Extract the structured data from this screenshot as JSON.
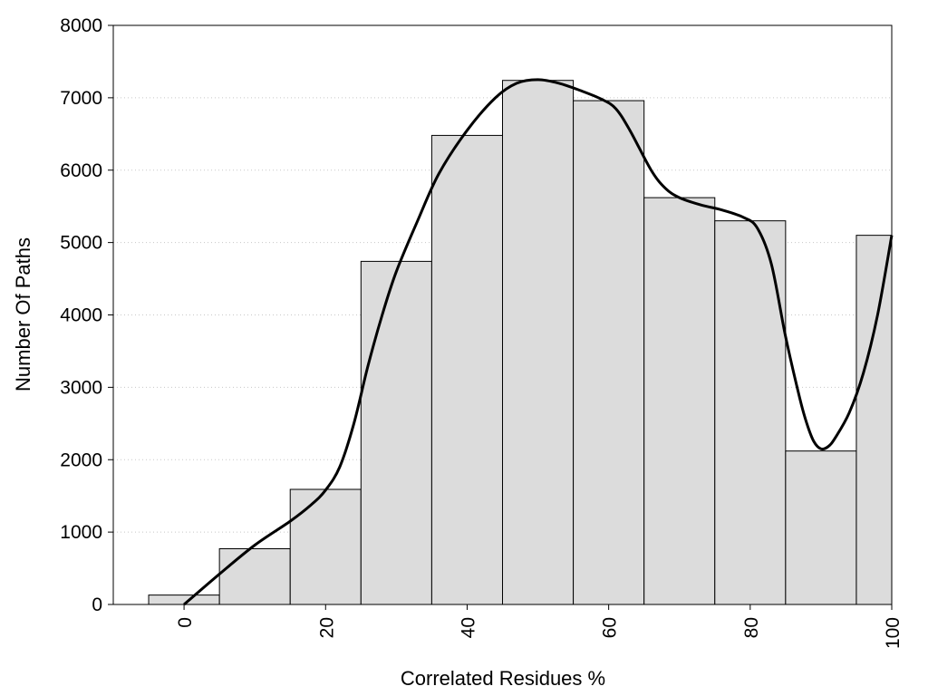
{
  "chart_data": {
    "type": "bar",
    "xlabel": "Correlated Residues %",
    "ylabel": "Number Of Paths",
    "xlim": [
      -10,
      100
    ],
    "ylim": [
      0,
      8000
    ],
    "xticks": [
      0,
      20,
      40,
      60,
      80,
      100
    ],
    "yticks": [
      0,
      1000,
      2000,
      3000,
      4000,
      5000,
      6000,
      7000,
      8000
    ],
    "grid": true,
    "bar_color": "#dcdcdc",
    "curve_color": "#000000",
    "bins": [
      {
        "start": -5,
        "end": 5,
        "value": 130
      },
      {
        "start": 5,
        "end": 15,
        "value": 770
      },
      {
        "start": 15,
        "end": 25,
        "value": 1590
      },
      {
        "start": 25,
        "end": 35,
        "value": 4740
      },
      {
        "start": 35,
        "end": 45,
        "value": 6480
      },
      {
        "start": 45,
        "end": 55,
        "value": 7240
      },
      {
        "start": 55,
        "end": 65,
        "value": 6960
      },
      {
        "start": 65,
        "end": 75,
        "value": 5620
      },
      {
        "start": 75,
        "end": 85,
        "value": 5300
      },
      {
        "start": 85,
        "end": 95,
        "value": 2120
      },
      {
        "start": 95,
        "end": 105,
        "value": 5100
      }
    ],
    "curve": {
      "x": [
        0,
        5,
        10,
        15,
        18,
        20,
        22,
        24,
        26,
        28,
        30,
        33,
        36,
        40,
        44,
        47,
        50,
        53,
        56,
        59,
        61,
        63,
        66,
        68,
        70,
        73,
        76,
        79,
        81,
        83,
        85,
        87,
        88,
        89,
        90,
        91,
        92,
        94,
        96,
        98,
        100
      ],
      "y": [
        0,
        420,
        820,
        1150,
        1380,
        1580,
        1900,
        2500,
        3300,
        4000,
        4600,
        5300,
        5950,
        6550,
        7000,
        7200,
        7250,
        7200,
        7100,
        6980,
        6850,
        6550,
        6000,
        5750,
        5620,
        5520,
        5450,
        5350,
        5200,
        4700,
        3700,
        2850,
        2500,
        2250,
        2150,
        2180,
        2300,
        2650,
        3200,
        4000,
        5100
      ]
    }
  }
}
